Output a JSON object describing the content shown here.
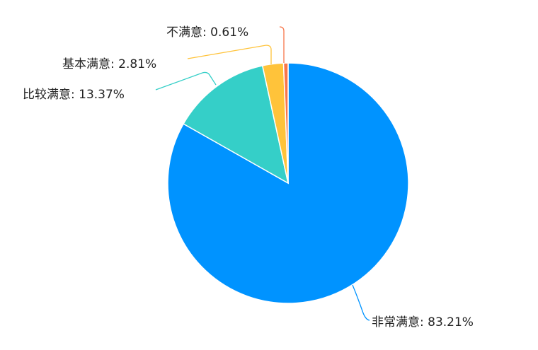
{
  "chart_data": {
    "type": "pie",
    "start": "top",
    "direction": "clockwise",
    "slices": [
      {
        "label": "非常满意",
        "value": 83.21,
        "text": "非常满意: 83.21%",
        "color": "#0093FF"
      },
      {
        "label": "比较满意",
        "value": 13.37,
        "text": "比较满意: 13.37%",
        "color": "#35CFC8"
      },
      {
        "label": "基本满意",
        "value": 2.81,
        "text": "基本满意: 2.81%",
        "color": "#FFC33A"
      },
      {
        "label": "不满意",
        "value": 0.61,
        "text": "不满意: 0.61%",
        "color": "#F8764A"
      }
    ]
  }
}
